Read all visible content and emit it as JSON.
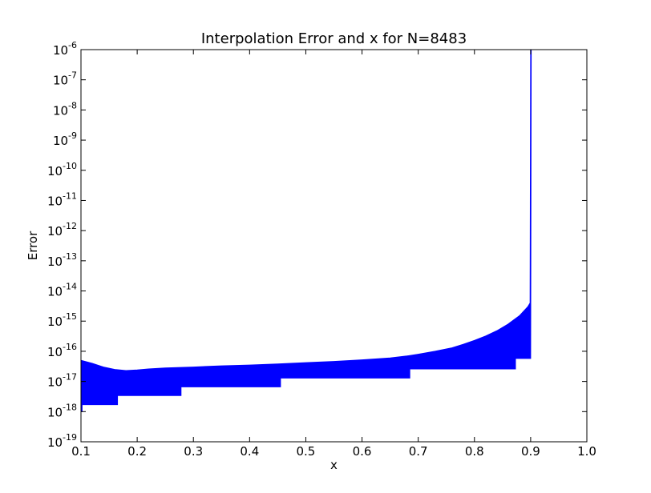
{
  "chart_data": {
    "type": "area",
    "title": "Interpolation Error and x for N=8483",
    "xlabel": "x",
    "ylabel": "Error",
    "xlim": [
      0.1,
      1.0
    ],
    "ylim": [
      1e-19,
      1e-06
    ],
    "yscale": "log",
    "grid": false,
    "legend": "none",
    "color": "#0000ff",
    "x_ticks": [
      0.1,
      0.2,
      0.3,
      0.4,
      0.5,
      0.6,
      0.7,
      0.8,
      0.9,
      1.0
    ],
    "x_tick_labels": [
      "0.1",
      "0.2",
      "0.3",
      "0.4",
      "0.5",
      "0.6",
      "0.7",
      "0.8",
      "0.9",
      "1.0"
    ],
    "y_tick_exponents": [
      -19,
      -18,
      -17,
      -16,
      -15,
      -14,
      -13,
      -12,
      -11,
      -10,
      -9,
      -8,
      -7,
      -6
    ],
    "y_tick_base": "10",
    "series": [
      {
        "upper_envelope": {
          "x": [
            0.1,
            0.12,
            0.14,
            0.16,
            0.18,
            0.2,
            0.22,
            0.25,
            0.3,
            0.35,
            0.4,
            0.45,
            0.5,
            0.55,
            0.6,
            0.65,
            0.68,
            0.7,
            0.73,
            0.76,
            0.78,
            0.8,
            0.82,
            0.84,
            0.86,
            0.88,
            0.895,
            0.899,
            0.9,
            0.901
          ],
          "y": [
            5e-17,
            4e-17,
            3e-17,
            2.5e-17,
            2.3e-17,
            2.4e-17,
            2.6e-17,
            2.8e-17,
            3e-17,
            3.3e-17,
            3.5e-17,
            3.8e-17,
            4.2e-17,
            4.6e-17,
            5.2e-17,
            6e-17,
            7e-17,
            8e-17,
            1e-16,
            1.3e-16,
            1.7e-16,
            2.3e-16,
            3.2e-16,
            4.8e-16,
            8e-16,
            1.5e-15,
            3e-15,
            4e-15,
            1e-06,
            1e-06
          ]
        },
        "lower_steps": {
          "x": [
            0.1,
            0.102,
            0.165,
            0.278,
            0.455,
            0.685,
            0.873,
            0.9
          ],
          "y": [
            1e-18,
            1.7e-18,
            3.4e-18,
            6.6e-18,
            1.3e-17,
            2.6e-17,
            5.8e-17,
            5.8e-17
          ]
        }
      }
    ]
  }
}
